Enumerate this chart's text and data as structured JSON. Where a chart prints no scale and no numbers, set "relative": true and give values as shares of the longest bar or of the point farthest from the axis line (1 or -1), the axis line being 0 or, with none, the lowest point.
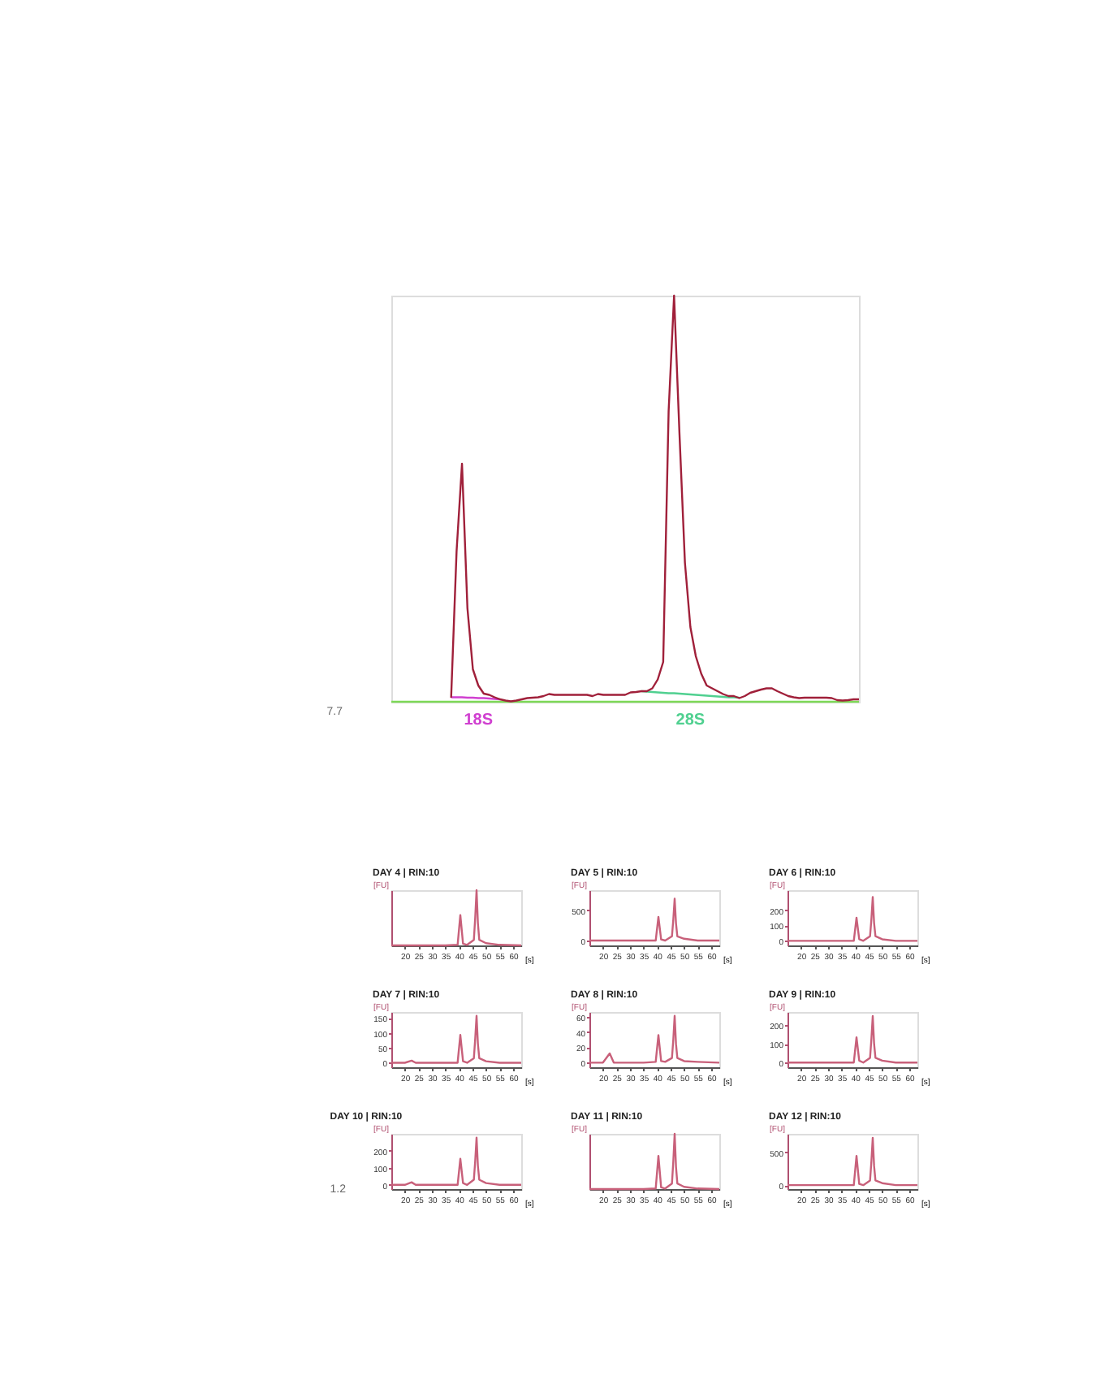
{
  "chart_data": [
    {
      "type": "line",
      "relative": true,
      "annotations": [
        "7.7"
      ],
      "categories": [
        null,
        null,
        null,
        null,
        null,
        null,
        null,
        null,
        null,
        null,
        null,
        null,
        null,
        null,
        null,
        null,
        null,
        null,
        null,
        null,
        null,
        null,
        null,
        null,
        null,
        null,
        null,
        null,
        null,
        null,
        null,
        null,
        null,
        null,
        null,
        null,
        null,
        null,
        null,
        null,
        null,
        null,
        null,
        null,
        null,
        null,
        null,
        null,
        null,
        null,
        null,
        null,
        null,
        null,
        null,
        null,
        null,
        null,
        null,
        null,
        null,
        null,
        null,
        null,
        null,
        null,
        null,
        null,
        null,
        null,
        null,
        null,
        null,
        null,
        null,
        null,
        null,
        null,
        null,
        null,
        null,
        null,
        null,
        null,
        null,
        null,
        null
      ],
      "series": [
        {
          "color": "#7ed957",
          "values": [
            0,
            0,
            0,
            0,
            0,
            0,
            0,
            0,
            0,
            0,
            0,
            0,
            0,
            0,
            0,
            0,
            0,
            0,
            0,
            0,
            0,
            0,
            0,
            0,
            0,
            0,
            0,
            0,
            0,
            0,
            0,
            0,
            0,
            0,
            0,
            0,
            0,
            0,
            0,
            0,
            0,
            0,
            0,
            0,
            0,
            0,
            0,
            0,
            0,
            0,
            0,
            0,
            0,
            0,
            0,
            0,
            0,
            0,
            0,
            0,
            0,
            0,
            0,
            0,
            0,
            0,
            0,
            0,
            0,
            0,
            0,
            0,
            0,
            0,
            0,
            0,
            0,
            0,
            0,
            0,
            0,
            0,
            0,
            0,
            0,
            0,
            0
          ]
        },
        {
          "name": "18S",
          "color": "#d040d0",
          "values": [
            null,
            null,
            null,
            null,
            null,
            null,
            null,
            null,
            null,
            null,
            null,
            0.011,
            0.011,
            0.011,
            0.01,
            0.01,
            0.009,
            0.009,
            0.008,
            0.007,
            0.006,
            null,
            null,
            null,
            null,
            null,
            null,
            null,
            null,
            null,
            null,
            null,
            null,
            null,
            null,
            null,
            null,
            null,
            null,
            null,
            null,
            null,
            null,
            null,
            null,
            null,
            null,
            null,
            null,
            null,
            null,
            null,
            null,
            null,
            null,
            null,
            null,
            null,
            null,
            null,
            null,
            null,
            null,
            null,
            null,
            null,
            null,
            null,
            null,
            null,
            null,
            null,
            null,
            null,
            null,
            null,
            null,
            null,
            null,
            null,
            null,
            null,
            null,
            null,
            null,
            null,
            null
          ]
        },
        {
          "name": "28S",
          "color": "#50d090",
          "values": [
            null,
            null,
            null,
            null,
            null,
            null,
            null,
            null,
            null,
            null,
            null,
            null,
            null,
            null,
            null,
            null,
            null,
            null,
            null,
            null,
            null,
            null,
            null,
            null,
            null,
            null,
            null,
            null,
            null,
            null,
            null,
            null,
            null,
            null,
            null,
            null,
            null,
            null,
            null,
            null,
            null,
            null,
            null,
            null,
            null,
            null,
            0.026,
            0.025,
            0.024,
            0.023,
            0.022,
            0.021,
            0.021,
            0.02,
            0.019,
            0.018,
            0.017,
            0.016,
            0.015,
            0.014,
            0.013,
            0.012,
            0.011,
            0.011,
            0.01,
            null,
            null,
            null,
            null,
            null,
            null,
            null,
            null,
            null,
            null,
            null,
            null,
            null,
            null,
            null,
            null,
            null,
            null,
            null,
            null,
            null,
            null
          ]
        },
        {
          "color": "#a0203a",
          "values": [
            null,
            null,
            null,
            null,
            null,
            null,
            null,
            null,
            null,
            null,
            null,
            0.01,
            0.37,
            0.586,
            0.23,
            0.08,
            0.04,
            0.02,
            0.017,
            0.011,
            0.006,
            0.003,
            0.001,
            0.003,
            0.006,
            0.009,
            0.01,
            0.011,
            0.014,
            0.019,
            0.017,
            0.017,
            0.017,
            0.017,
            0.017,
            0.017,
            0.017,
            0.014,
            0.019,
            0.017,
            0.017,
            0.017,
            0.017,
            0.017,
            0.023,
            0.024,
            0.026,
            0.026,
            0.033,
            0.055,
            0.098,
            0.716,
            1,
            0.658,
            0.342,
            0.184,
            0.112,
            0.069,
            0.04,
            0.033,
            0.026,
            0.019,
            0.014,
            0.014,
            0.009,
            0.014,
            0.022,
            0.026,
            0.03,
            0.033,
            0.033,
            0.026,
            0.02,
            0.014,
            0.011,
            0.009,
            0.01,
            0.01,
            0.01,
            0.01,
            0.01,
            0.009,
            0.004,
            0.003,
            0.004,
            0.006,
            0.006
          ]
        }
      ]
    },
    {
      "type": "line",
      "title": "DAY 4 | RIN:10",
      "ylabel": "[FU]",
      "xlabel": "[s]",
      "relative": true,
      "xlim": [
        15,
        63
      ],
      "xticks": [
        20,
        25,
        30,
        35,
        40,
        45,
        50,
        55,
        60
      ],
      "x": [
        15,
        20,
        22.5,
        24,
        35,
        39.5,
        40.5,
        41.5,
        43,
        45.5,
        46,
        46.5,
        47,
        47.5,
        50,
        55,
        63
      ],
      "series": [
        {
          "color": "#c8607a",
          "values": [
            0,
            0,
            0,
            0,
            0,
            0.01,
            0.55,
            0.03,
            0.01,
            0.1,
            0.5,
            1,
            0.4,
            0.1,
            0.04,
            0.01,
            0
          ]
        }
      ]
    },
    {
      "type": "line",
      "title": "DAY 5 | RIN:10",
      "ylabel": "[FU]",
      "xlabel": "[s]",
      "xlim": [
        15,
        63
      ],
      "xticks": [
        20,
        25,
        30,
        35,
        40,
        45,
        50,
        55,
        60
      ],
      "ylim": [
        -80,
        830
      ],
      "yticks": [
        0,
        500
      ],
      "x": [
        15,
        20,
        22.5,
        24,
        35,
        39.5,
        40.5,
        41.5,
        43,
        45.5,
        46,
        46.5,
        47,
        47.5,
        50,
        55,
        63
      ],
      "series": [
        {
          "color": "#c8607a",
          "values": [
            0,
            0,
            0,
            0,
            0,
            0,
            390,
            20,
            0,
            70,
            345,
            690,
            280,
            70,
            30,
            0,
            0
          ]
        }
      ]
    },
    {
      "type": "line",
      "title": "DAY 6 | RIN:10",
      "ylabel": "[FU]",
      "xlabel": "[s]",
      "xlim": [
        15,
        63
      ],
      "xticks": [
        20,
        25,
        30,
        35,
        40,
        45,
        50,
        55,
        60
      ],
      "ylim": [
        -30,
        330
      ],
      "yticks": [
        0,
        100,
        200
      ],
      "x": [
        15,
        20,
        22.5,
        24,
        35,
        39.5,
        40.5,
        41.5,
        43,
        45.5,
        46,
        46.5,
        47,
        47.5,
        50,
        55,
        63
      ],
      "series": [
        {
          "color": "#c8607a",
          "values": [
            0,
            0,
            0,
            0,
            0,
            0,
            150,
            10,
            0,
            30,
            140,
            285,
            115,
            30,
            10,
            0,
            0
          ]
        }
      ]
    },
    {
      "type": "line",
      "title": "DAY 7 | RIN:10",
      "ylabel": "[FU]",
      "xlabel": "[s]",
      "xlim": [
        15,
        63
      ],
      "xticks": [
        20,
        25,
        30,
        35,
        40,
        45,
        50,
        55,
        60
      ],
      "ylim": [
        -15,
        170
      ],
      "yticks": [
        0,
        50,
        100,
        150
      ],
      "x": [
        15,
        20,
        22.5,
        24,
        35,
        39.5,
        40.5,
        41.5,
        43,
        45.5,
        46,
        46.5,
        47,
        47.5,
        50,
        55,
        63
      ],
      "series": [
        {
          "color": "#c8607a",
          "values": [
            0,
            0,
            7,
            0,
            0,
            0,
            93,
            5,
            0,
            15,
            80,
            157,
            63,
            15,
            5,
            0,
            0
          ]
        }
      ]
    },
    {
      "type": "line",
      "title": "DAY 8 | RIN:10",
      "ylabel": "[FU]",
      "xlabel": "[s]",
      "xlim": [
        15,
        63
      ],
      "xticks": [
        20,
        25,
        30,
        35,
        40,
        45,
        50,
        55,
        60
      ],
      "ylim": [
        -6,
        66
      ],
      "yticks": [
        0,
        20,
        40,
        60
      ],
      "x": [
        15,
        20,
        22.5,
        24,
        35,
        39.5,
        40.5,
        41.5,
        43,
        45.5,
        46,
        46.5,
        47,
        47.5,
        50,
        55,
        63
      ],
      "series": [
        {
          "color": "#c8607a",
          "values": [
            0,
            0,
            12,
            0,
            0,
            1,
            36,
            2,
            1,
            6,
            30,
            61,
            24,
            6,
            2,
            1,
            0
          ]
        }
      ]
    },
    {
      "type": "line",
      "title": "DAY 9 | RIN:10",
      "ylabel": "[FU]",
      "xlabel": "[s]",
      "xlim": [
        15,
        63
      ],
      "xticks": [
        20,
        25,
        30,
        35,
        40,
        45,
        50,
        55,
        60
      ],
      "ylim": [
        -25,
        270
      ],
      "yticks": [
        0,
        100,
        200
      ],
      "x": [
        15,
        20,
        22.5,
        24,
        35,
        39.5,
        40.5,
        41.5,
        43,
        45.5,
        46,
        46.5,
        47,
        47.5,
        50,
        55,
        63
      ],
      "series": [
        {
          "color": "#c8607a",
          "values": [
            0,
            0,
            0,
            0,
            0,
            0,
            135,
            10,
            0,
            25,
            125,
            248,
            100,
            25,
            10,
            0,
            0
          ]
        }
      ]
    },
    {
      "type": "line",
      "title": "DAY 10 | RIN:10",
      "ylabel": "[FU]",
      "xlabel": "[s]",
      "annotations": [
        "1.2"
      ],
      "xlim": [
        15,
        63
      ],
      "xticks": [
        20,
        25,
        30,
        35,
        40,
        45,
        50,
        55,
        60
      ],
      "ylim": [
        -25,
        300
      ],
      "yticks": [
        0,
        100,
        200
      ],
      "x": [
        15,
        20,
        22.5,
        24,
        35,
        39.5,
        40.5,
        41.5,
        43,
        45.5,
        46,
        46.5,
        47,
        47.5,
        50,
        55,
        63
      ],
      "series": [
        {
          "color": "#c8607a",
          "values": [
            0,
            0,
            15,
            0,
            0,
            0,
            153,
            10,
            0,
            30,
            140,
            278,
            110,
            30,
            10,
            0,
            0
          ]
        }
      ]
    },
    {
      "type": "line",
      "title": "DAY 11 | RIN:10",
      "ylabel": "[FU]",
      "xlabel": "[s]",
      "relative": true,
      "xlim": [
        15,
        63
      ],
      "xticks": [
        20,
        25,
        30,
        35,
        40,
        45,
        50,
        55,
        60
      ],
      "x": [
        15,
        20,
        22.5,
        24,
        35,
        39.5,
        40.5,
        41.5,
        43,
        45.5,
        46,
        46.5,
        47,
        47.5,
        50,
        55,
        63
      ],
      "series": [
        {
          "color": "#c8607a",
          "values": [
            0,
            0,
            0,
            0,
            0,
            0.01,
            0.6,
            0.03,
            0.01,
            0.1,
            0.5,
            1,
            0.4,
            0.1,
            0.04,
            0.01,
            0
          ]
        }
      ]
    },
    {
      "type": "line",
      "title": "DAY 12 | RIN:10",
      "ylabel": "[FU]",
      "xlabel": "[s]",
      "xlim": [
        15,
        63
      ],
      "xticks": [
        20,
        25,
        30,
        35,
        40,
        45,
        50,
        55,
        60
      ],
      "ylim": [
        -60,
        780
      ],
      "yticks": [
        0,
        500
      ],
      "x": [
        15,
        20,
        22.5,
        24,
        35,
        39.5,
        40.5,
        41.5,
        43,
        45.5,
        46,
        46.5,
        47,
        47.5,
        50,
        55,
        63
      ],
      "series": [
        {
          "color": "#c8607a",
          "values": [
            0,
            0,
            0,
            0,
            0,
            0,
            445,
            20,
            0,
            70,
            360,
            719,
            290,
            70,
            30,
            0,
            0
          ]
        }
      ]
    }
  ]
}
